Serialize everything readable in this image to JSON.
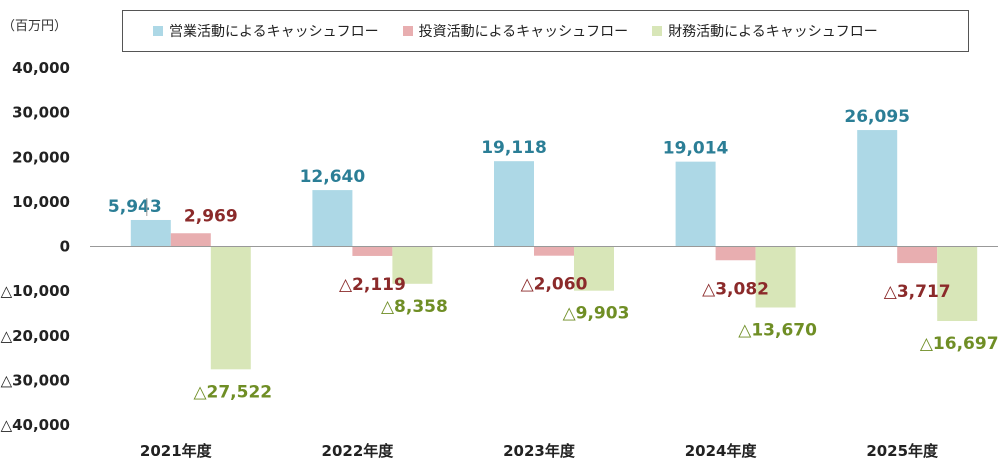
{
  "unit_label": "（百万円）",
  "colors": {
    "operating": "#add8e6",
    "investing": "#e8aeb0",
    "financing": "#d8e6b8",
    "operating_label": "#2b7e96",
    "investing_label": "#8b2a2a",
    "financing_label": "#6f8e25",
    "axis": "#999999"
  },
  "chart_data": {
    "type": "bar",
    "title": "",
    "categories": [
      "2021年度",
      "2022年度",
      "2023年度",
      "2024年度",
      "2025年度"
    ],
    "ylim": [
      -40000,
      40000
    ],
    "yticks": [
      40000,
      30000,
      20000,
      10000,
      0,
      -10000,
      -20000,
      -30000,
      -40000
    ],
    "ytick_labels": [
      "40,000",
      "30,000",
      "20,000",
      "10,000",
      "0",
      "△10,000",
      "△20,000",
      "△30,000",
      "△40,000"
    ],
    "legend_position": "top",
    "series": [
      {
        "name": "営業活動によるキャッシュフロー",
        "key": "operating",
        "values": [
          5943,
          12640,
          19118,
          19014,
          26095
        ],
        "labels": [
          "5,943",
          "12,640",
          "19,118",
          "19,014",
          "26,095"
        ]
      },
      {
        "name": "投資活動によるキャッシュフロー",
        "key": "investing",
        "values": [
          2969,
          -2119,
          -2060,
          -3082,
          -3717
        ],
        "labels": [
          "2,969",
          "△2,119",
          "△2,060",
          "△3,082",
          "△3,717"
        ]
      },
      {
        "name": "財務活動によるキャッシュフロー",
        "key": "financing",
        "values": [
          -27522,
          -8358,
          -9903,
          -13670,
          -16697
        ],
        "labels": [
          "△27,522",
          "△8,358",
          "△9,903",
          "△13,670",
          "△16,697"
        ]
      }
    ]
  }
}
